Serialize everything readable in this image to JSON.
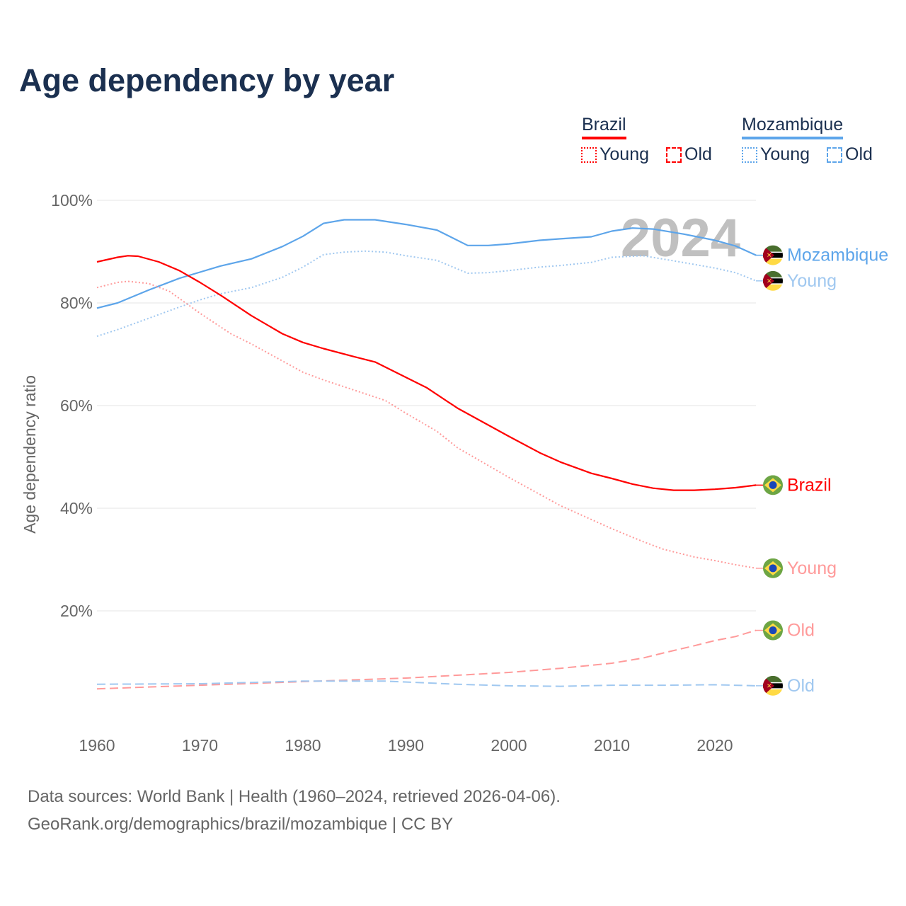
{
  "title": "Age dependency by year",
  "legend": {
    "groups": [
      {
        "name": "Brazil",
        "color": "#ff0000",
        "items": [
          "Young",
          "Old"
        ]
      },
      {
        "name": "Mozambique",
        "color": "#5da5ea",
        "items": [
          "Young",
          "Old"
        ]
      }
    ]
  },
  "footer": {
    "line1": "Data sources: World Bank | Health (1960–2024, retrieved 2026-04-06).",
    "line2": "GeoRank.org/demographics/brazil/mozambique | CC BY"
  },
  "chart_data": {
    "type": "line",
    "title": "Age dependency by year",
    "xlabel": "",
    "ylabel": "Age dependency ratio",
    "xlim": [
      1960,
      2024
    ],
    "ylim": [
      0,
      100
    ],
    "x_ticks": [
      "1960",
      "1970",
      "1980",
      "1990",
      "2000",
      "2010",
      "2020"
    ],
    "y_ticks": [
      "20%",
      "40%",
      "60%",
      "80%",
      "100%"
    ],
    "y_tick_values": [
      20,
      40,
      60,
      80,
      100
    ],
    "grid": true,
    "year_watermark": "2024",
    "series": [
      {
        "name": "Mozambique",
        "label": "Mozambique",
        "country": "Mozambique",
        "style": "solid",
        "color": "#5da5ea",
        "x": [
          1960,
          1962,
          1965,
          1968,
          1970,
          1972,
          1975,
          1978,
          1980,
          1982,
          1984,
          1987,
          1990,
          1993,
          1996,
          1998,
          2000,
          2003,
          2005,
          2008,
          2010,
          2012,
          2014,
          2017,
          2020,
          2022,
          2024
        ],
        "y": [
          79,
          80,
          82.5,
          84.8,
          86,
          87.2,
          88.6,
          91,
          93,
          95.5,
          96.2,
          96.2,
          95.3,
          94.2,
          91.2,
          91.2,
          91.5,
          92.2,
          92.5,
          92.9,
          94,
          94.6,
          94.4,
          93.4,
          92.2,
          91.1,
          89.3
        ]
      },
      {
        "name": "Mozambique Young",
        "label": "Young",
        "country": "Mozambique",
        "style": "dotted",
        "color": "#a0c8f0",
        "x": [
          1960,
          1962,
          1965,
          1968,
          1970,
          1972,
          1975,
          1978,
          1980,
          1982,
          1984,
          1986,
          1988,
          1990,
          1993,
          1996,
          1998,
          2000,
          2003,
          2005,
          2008,
          2010,
          2013,
          2016,
          2020,
          2022,
          2024
        ],
        "y": [
          73.5,
          74.8,
          77,
          79.2,
          80.6,
          81.8,
          83,
          85,
          87,
          89.4,
          89.9,
          90.1,
          89.9,
          89.2,
          88.3,
          85.8,
          85.9,
          86.3,
          87,
          87.3,
          87.9,
          88.9,
          89.2,
          88.2,
          86.8,
          85.9,
          84.3
        ]
      },
      {
        "name": "Brazil",
        "label": "Brazil",
        "country": "Brazil",
        "style": "solid",
        "color": "#ff0000",
        "x": [
          1960,
          1962,
          1963,
          1964,
          1966,
          1968,
          1970,
          1972,
          1975,
          1978,
          1980,
          1982,
          1985,
          1987,
          1990,
          1992,
          1995,
          2000,
          2003,
          2005,
          2008,
          2010,
          2012,
          2014,
          2016,
          2018,
          2020,
          2022,
          2024
        ],
        "y": [
          88,
          88.9,
          89.2,
          89.1,
          88,
          86.3,
          84,
          81.5,
          77.5,
          74,
          72.3,
          71.1,
          69.5,
          68.5,
          65.5,
          63.5,
          59.5,
          54,
          50.8,
          49,
          46.8,
          45.8,
          44.7,
          43.9,
          43.5,
          43.5,
          43.7,
          44,
          44.5
        ]
      },
      {
        "name": "Brazil Young",
        "label": "Young",
        "country": "Brazil",
        "style": "dotted",
        "color": "#ff9a9a",
        "x": [
          1960,
          1962,
          1963,
          1965,
          1967,
          1970,
          1973,
          1975,
          1978,
          1980,
          1982,
          1985,
          1988,
          1990,
          1993,
          1995,
          2000,
          2005,
          2010,
          2013,
          2015,
          2018,
          2020,
          2022,
          2024
        ],
        "y": [
          83,
          84,
          84.2,
          83.8,
          82.3,
          78,
          74,
          72,
          68.7,
          66.5,
          65,
          63,
          61,
          58.5,
          55,
          51.8,
          46,
          40.5,
          36,
          33.5,
          32,
          30.5,
          29.8,
          29,
          28.3
        ]
      },
      {
        "name": "Brazil Old",
        "label": "Old",
        "country": "Brazil",
        "style": "dashed",
        "color": "#ff9a9a",
        "x": [
          1960,
          1970,
          1980,
          1990,
          2000,
          2005,
          2010,
          2013,
          2015,
          2018,
          2020,
          2022,
          2024
        ],
        "y": [
          4.8,
          5.5,
          6.2,
          6.9,
          8,
          8.8,
          9.8,
          10.8,
          11.8,
          13.2,
          14.2,
          15,
          16.2
        ]
      },
      {
        "name": "Mozambique Old",
        "label": "Old",
        "country": "Mozambique",
        "style": "dashed",
        "color": "#a0c8f0",
        "x": [
          1960,
          1970,
          1980,
          1988,
          1995,
          2000,
          2005,
          2010,
          2015,
          2020,
          2024
        ],
        "y": [
          5.7,
          5.8,
          6.3,
          6.3,
          5.7,
          5.4,
          5.3,
          5.5,
          5.5,
          5.6,
          5.4
        ]
      }
    ]
  }
}
